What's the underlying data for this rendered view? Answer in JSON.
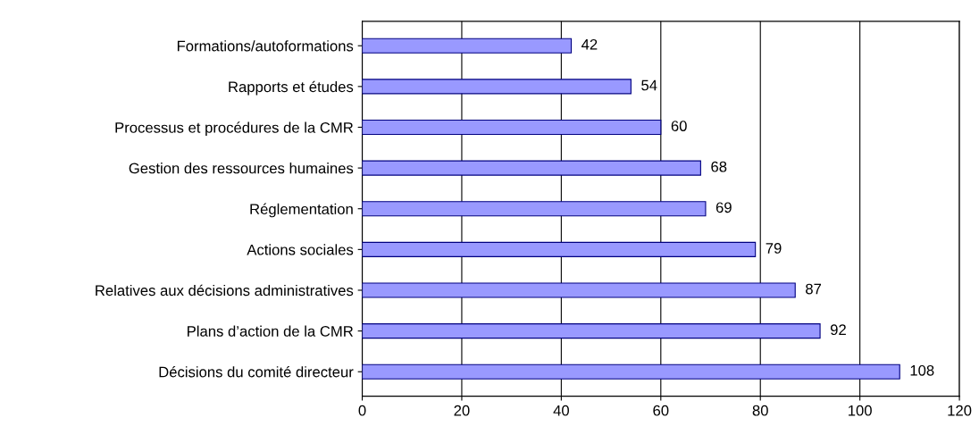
{
  "chart_data": {
    "type": "bar",
    "orientation": "horizontal",
    "categories": [
      "Formations/autoformations",
      "Rapports et études",
      "Processus et procédures de la CMR",
      "Gestion des ressources humaines",
      "Réglementation",
      "Actions sociales",
      "Relatives aux décisions administratives",
      "Plans d’action de la CMR",
      "Décisions du comité directeur"
    ],
    "values": [
      42,
      54,
      60,
      68,
      69,
      79,
      87,
      92,
      108
    ],
    "color": "#9999ff",
    "xlim": [
      0,
      120
    ],
    "xticks": [
      0,
      20,
      40,
      60,
      80,
      100,
      120
    ],
    "grid": "x",
    "data_labels": true
  }
}
